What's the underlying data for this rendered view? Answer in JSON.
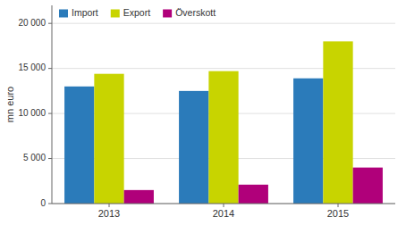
{
  "chart_data": {
    "type": "bar",
    "categories": [
      "2013",
      "2014",
      "2015"
    ],
    "series": [
      {
        "name": "Import",
        "color": "#2b7bba",
        "values": [
          13000,
          12500,
          13900
        ]
      },
      {
        "name": "Export",
        "color": "#c8d400",
        "values": [
          14400,
          14700,
          18000
        ]
      },
      {
        "name": "Överskott",
        "color": "#b0007a",
        "values": [
          1500,
          2100,
          4000
        ]
      }
    ],
    "ylabel": "mn euro",
    "ylim": [
      0,
      22000
    ],
    "yticks": [
      0,
      {
        "value": 5000,
        "label": "5 000"
      },
      {
        "value": 10000,
        "label": "10 000"
      },
      {
        "value": 15000,
        "label": "15 000"
      },
      {
        "value": 20000,
        "label": "20 000"
      }
    ],
    "grid": true,
    "legend": "upper left"
  }
}
